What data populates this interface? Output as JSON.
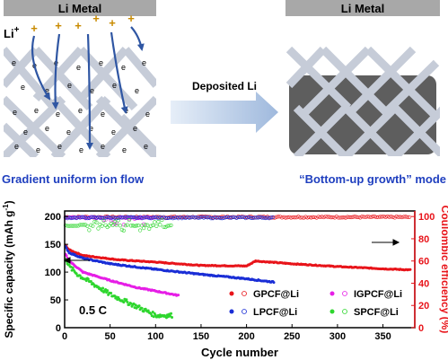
{
  "scheme": {
    "left_header": "Li Metal",
    "right_header": "Li Metal",
    "ion_label": "Li",
    "ion_charge": "+",
    "cation_symbol": "+",
    "electron_symbol": "e",
    "arrow_label": "Deposited Li",
    "left_caption": "Gradient uniform ion flow",
    "right_caption": "“Bottom-up growth” mode",
    "colors": {
      "header_bg": "#a8a8a8",
      "lattice": "#c6ccd8",
      "ion_arrow": "#2f56a3",
      "caption": "#1f3fbf",
      "deposit": "#5e5e5e",
      "flow_arrow": "#b9cce6"
    }
  },
  "chart_data": {
    "type": "scatter",
    "xlabel": "Cycle number",
    "ylabel_left": "Specific capacity (mAh g",
    "ylabel_left_sup": "-1",
    "ylabel_left_end": ")",
    "ylabel_right": "Coulombic efficiency (%)",
    "xlim": [
      0,
      385
    ],
    "ylim_left": [
      0,
      210
    ],
    "ylim_right": [
      0,
      105
    ],
    "xticks": [
      "0",
      "50",
      "100",
      "150",
      "200",
      "250",
      "300",
      "350"
    ],
    "yticks_left": [
      "0",
      "50",
      "100",
      "150",
      "200"
    ],
    "yticks_right": [
      "0",
      "20",
      "40",
      "60",
      "80",
      "100"
    ],
    "condition_label": "0.5 C",
    "series": [
      {
        "name": "GPCF@Li",
        "color": "#e8141a",
        "kind": "capacity",
        "cycles": 380,
        "start": 150,
        "points": [
          [
            0,
            150
          ],
          [
            5,
            140
          ],
          [
            20,
            130
          ],
          [
            60,
            122
          ],
          [
            100,
            118
          ],
          [
            150,
            112
          ],
          [
            200,
            111
          ],
          [
            210,
            120
          ],
          [
            250,
            115
          ],
          [
            300,
            110
          ],
          [
            350,
            106
          ],
          [
            380,
            104
          ]
        ],
        "scatter": 1.5,
        "ce_cycles": 380,
        "ce": 99.5
      },
      {
        "name": "IGPCF@Li",
        "color": "#e61ee6",
        "kind": "capacity",
        "cycles": 125,
        "start": 135,
        "points": [
          [
            0,
            135
          ],
          [
            5,
            120
          ],
          [
            20,
            100
          ],
          [
            50,
            85
          ],
          [
            80,
            72
          ],
          [
            100,
            66
          ],
          [
            125,
            58
          ]
        ],
        "scatter": 2,
        "ce_cycles": 100,
        "ce": 99
      },
      {
        "name": "LPCF@Li",
        "color": "#1a2ed6",
        "kind": "capacity",
        "cycles": 230,
        "start": 148,
        "points": [
          [
            0,
            148
          ],
          [
            5,
            135
          ],
          [
            20,
            125
          ],
          [
            50,
            115
          ],
          [
            100,
            105
          ],
          [
            150,
            96
          ],
          [
            200,
            88
          ],
          [
            230,
            82
          ]
        ],
        "scatter": 2,
        "ce_cycles": 230,
        "ce": 99
      },
      {
        "name": "SPCF@Li",
        "color": "#2ed62e",
        "kind": "capacity",
        "cycles": 118,
        "start": 130,
        "points": [
          [
            0,
            130
          ],
          [
            5,
            110
          ],
          [
            15,
            95
          ],
          [
            30,
            80
          ],
          [
            50,
            60
          ],
          [
            70,
            45
          ],
          [
            90,
            30
          ],
          [
            100,
            22
          ],
          [
            118,
            22
          ]
        ],
        "scatter": 8,
        "ce_cycles": 118,
        "ce": 92
      }
    ],
    "legend_placement": "lower-right",
    "colors": {
      "axis_left": "#000000",
      "axis_right": "#e8141a"
    }
  }
}
